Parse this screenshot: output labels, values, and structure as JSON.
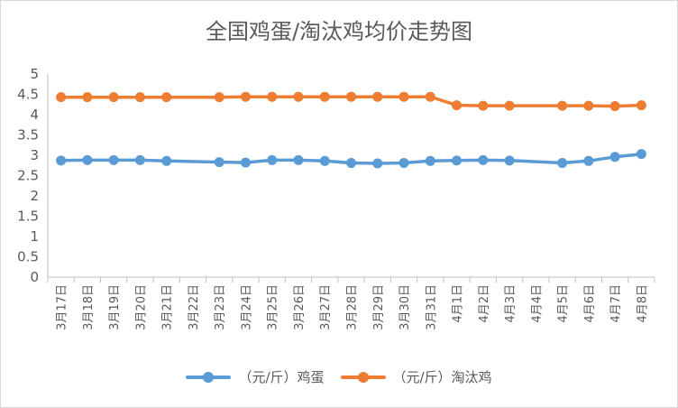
{
  "chart_data": {
    "type": "line",
    "title": "全国鸡蛋/淘汰鸡均价走势图",
    "categories": [
      "3月17日",
      "3月18日",
      "3月19日",
      "3月20日",
      "3月21日",
      "3月22日",
      "3月23日",
      "3月24日",
      "3月25日",
      "3月26日",
      "3月27日",
      "3月28日",
      "3月29日",
      "3月30日",
      "3月31日",
      "4月1日",
      "4月2日",
      "4月3日",
      "4月4日",
      "4月5日",
      "4月6日",
      "4月7日",
      "4月8日"
    ],
    "ylim": [
      0,
      5
    ],
    "yticks": [
      "0",
      "0.5",
      "1",
      "1.5",
      "2",
      "2.5",
      "3",
      "3.5",
      "4",
      "4.5",
      "5"
    ],
    "grid": false,
    "legend_position": "bottom",
    "series": [
      {
        "name": "（元/斤）鸡蛋",
        "color": "#5b9bd5",
        "values": [
          2.87,
          2.88,
          2.88,
          2.88,
          2.86,
          null,
          2.83,
          2.82,
          2.88,
          2.88,
          2.86,
          2.81,
          2.8,
          2.81,
          2.86,
          2.87,
          2.88,
          2.87,
          null,
          2.81,
          2.86,
          2.96,
          3.03
        ]
      },
      {
        "name": "（元/斤）淘汰鸡",
        "color": "#ed7d31",
        "values": [
          4.43,
          4.43,
          4.43,
          4.43,
          4.43,
          null,
          4.43,
          4.44,
          4.44,
          4.44,
          4.44,
          4.44,
          4.44,
          4.44,
          4.44,
          4.23,
          4.22,
          4.22,
          null,
          4.22,
          4.22,
          4.21,
          4.23
        ]
      }
    ]
  }
}
